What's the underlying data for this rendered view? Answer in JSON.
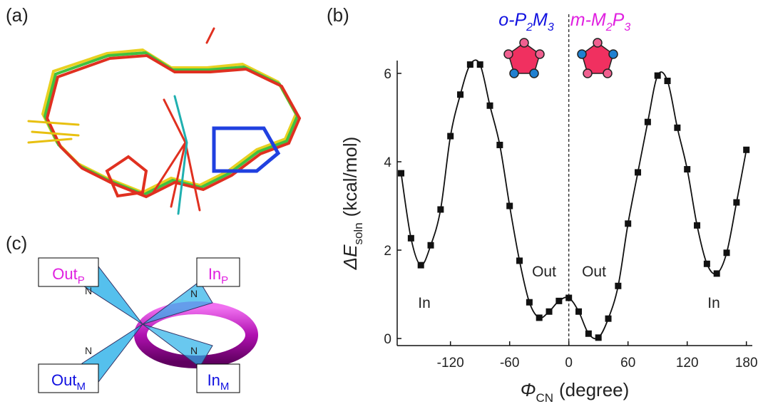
{
  "panel_labels": [
    "(a)",
    "(b)",
    "(c)"
  ],
  "chart_data": {
    "type": "scatter",
    "x_label": {
      "symbol": "Φ",
      "sub": "CN",
      "unit": "(degree)"
    },
    "y_label": {
      "symbol": "ΔE",
      "sub": "soln",
      "unit": "(kcal/mol)"
    },
    "conformers": [
      {
        "prefix": "o-P",
        "sub1": "2",
        "mid": "M",
        "sub2": "3",
        "color": "#1010e0"
      },
      {
        "prefix": "m-M",
        "sub1": "2",
        "mid": "P",
        "sub2": "3",
        "color": "#e020e0"
      }
    ],
    "annotations": [
      "In",
      "Out",
      "Out",
      "In"
    ],
    "x": [
      -170,
      -160,
      -150,
      -140,
      -130,
      -120,
      -110,
      -100,
      -90,
      -80,
      -70,
      -60,
      -50,
      -40,
      -30,
      -20,
      -10,
      0,
      10,
      20,
      30,
      40,
      50,
      60,
      70,
      80,
      90,
      100,
      110,
      120,
      130,
      140,
      150,
      160,
      170,
      180
    ],
    "values": [
      3.74,
      2.27,
      1.66,
      2.11,
      2.92,
      4.58,
      5.52,
      6.2,
      6.2,
      5.27,
      4.38,
      3.0,
      1.76,
      0.82,
      0.47,
      0.61,
      0.85,
      0.92,
      0.61,
      0.11,
      0.02,
      0.45,
      1.19,
      2.6,
      3.76,
      4.9,
      5.95,
      5.83,
      4.77,
      3.83,
      2.56,
      1.69,
      1.47,
      1.94,
      3.08,
      4.27
    ],
    "color": "#111111",
    "xlim": [
      -174,
      186
    ],
    "ylim": [
      -0.16,
      6.29
    ],
    "xticks": [
      -120,
      -60,
      0,
      60,
      120,
      180
    ],
    "yticks": [
      0,
      2,
      4,
      6
    ]
  },
  "diagram": {
    "labels": [
      {
        "text": "Out",
        "sub": "P",
        "color": "#e020e0"
      },
      {
        "text": "In",
        "sub": "P",
        "color": "#e020e0"
      },
      {
        "text": "Out",
        "sub": "M",
        "color": "#1010e0"
      },
      {
        "text": "In",
        "sub": "M",
        "color": "#1010e0"
      }
    ],
    "atoms": [
      "N",
      "N",
      "N",
      "N"
    ]
  }
}
